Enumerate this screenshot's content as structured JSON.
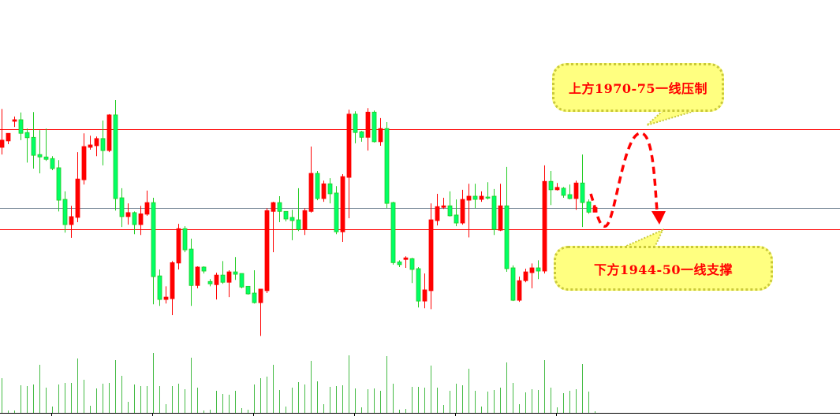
{
  "annotations": {
    "resistance_text": "上方1970-75一线压制",
    "support_text": "下方1944-50一线支撑"
  },
  "colors": {
    "up_candle": "#ff0000",
    "down_candle": "#00ff66",
    "down_outline": "#22cc22",
    "resistance_line": "#ff0000",
    "support_line": "#ff0000",
    "mid_line": "#7a8a99",
    "volume": "#44bb44",
    "callout_fill": "#ffff80",
    "callout_border": "#c9c93a",
    "forecast_arrow": "#ff0000"
  },
  "chart_data": {
    "type": "candlestick",
    "title": "",
    "xlabel": "",
    "ylabel": "",
    "ylim": [
      1900.4,
      2004.3
    ],
    "grid": false,
    "legend": "none",
    "horizontal_lines": [
      {
        "role": "resistance",
        "value": 1972.0
      },
      {
        "role": "mid",
        "value": 1952.3
      },
      {
        "role": "support",
        "value": 1947.0
      }
    ],
    "ohlc": [
      [
        1967.5,
        1977.1,
        1965.7,
        1969.3
      ],
      [
        1969.1,
        1971.0,
        1968.3,
        1971.0
      ],
      [
        1974.0,
        1975.2,
        1972.6,
        1974.4
      ],
      [
        1974.4,
        1976.2,
        1969.3,
        1971.0
      ],
      [
        1971.2,
        1972.2,
        1963.7,
        1969.9
      ],
      [
        1970.0,
        1976.3,
        1962.2,
        1965.5
      ],
      [
        1965.7,
        1971.8,
        1961.0,
        1965.1
      ],
      [
        1965.1,
        1972.2,
        1964.1,
        1964.5
      ],
      [
        1964.7,
        1965.3,
        1961.8,
        1962.2
      ],
      [
        1962.4,
        1964.3,
        1951.5,
        1954.3
      ],
      [
        1954.5,
        1956.5,
        1946.2,
        1948.2
      ],
      [
        1948.2,
        1952.9,
        1944.9,
        1950.2
      ],
      [
        1950.0,
        1966.3,
        1948.8,
        1959.6
      ],
      [
        1959.4,
        1971.0,
        1958.2,
        1967.7
      ],
      [
        1967.5,
        1970.4,
        1966.9,
        1968.1
      ],
      [
        1967.9,
        1970.2,
        1965.3,
        1969.7
      ],
      [
        1969.7,
        1974.2,
        1963.0,
        1966.7
      ],
      [
        1966.7,
        1975.8,
        1966.3,
        1975.6
      ],
      [
        1975.6,
        1979.3,
        1951.7,
        1954.7
      ],
      [
        1954.9,
        1957.3,
        1947.6,
        1950.2
      ],
      [
        1950.2,
        1953.5,
        1948.2,
        1951.2
      ],
      [
        1951.2,
        1951.5,
        1945.8,
        1948.2
      ],
      [
        1948.2,
        1952.9,
        1945.6,
        1950.9
      ],
      [
        1950.8,
        1956.7,
        1950.4,
        1953.7
      ],
      [
        1953.7,
        1954.9,
        1928.3,
        1935.2
      ],
      [
        1935.4,
        1937.0,
        1927.9,
        1929.5
      ],
      [
        1929.5,
        1932.8,
        1928.5,
        1930.1
      ],
      [
        1929.7,
        1939.1,
        1925.6,
        1938.7
      ],
      [
        1938.6,
        1948.4,
        1937.0,
        1947.2
      ],
      [
        1947.2,
        1947.8,
        1941.3,
        1941.9
      ],
      [
        1942.1,
        1944.7,
        1927.9,
        1933.0
      ],
      [
        1933.0,
        1937.8,
        1932.3,
        1937.6
      ],
      [
        1937.6,
        1937.8,
        1936.0,
        1936.6
      ],
      [
        1934.0,
        1934.6,
        1932.8,
        1933.4
      ],
      [
        1933.2,
        1936.2,
        1929.5,
        1935.6
      ],
      [
        1935.6,
        1939.1,
        1933.4,
        1933.8
      ],
      [
        1933.8,
        1936.8,
        1930.1,
        1936.4
      ],
      [
        1936.4,
        1940.1,
        1934.4,
        1935.8
      ],
      [
        1936.0,
        1936.0,
        1932.3,
        1932.6
      ],
      [
        1932.8,
        1932.8,
        1930.7,
        1930.9
      ],
      [
        1931.1,
        1936.8,
        1928.5,
        1928.7
      ],
      [
        1928.7,
        1932.1,
        1920.4,
        1932.1
      ],
      [
        1931.7,
        1952.3,
        1931.1,
        1951.7
      ],
      [
        1951.5,
        1953.9,
        1941.3,
        1953.7
      ],
      [
        1953.7,
        1955.3,
        1948.8,
        1951.5
      ],
      [
        1951.5,
        1951.5,
        1949.0,
        1949.6
      ],
      [
        1950.0,
        1951.9,
        1944.3,
        1949.2
      ],
      [
        1949.4,
        1957.3,
        1946.6,
        1947.0
      ],
      [
        1947.0,
        1952.3,
        1945.6,
        1951.7
      ],
      [
        1951.5,
        1967.7,
        1951.2,
        1961.0
      ],
      [
        1961.0,
        1961.6,
        1954.3,
        1954.7
      ],
      [
        1954.7,
        1959.2,
        1953.9,
        1958.4
      ],
      [
        1958.4,
        1959.8,
        1953.5,
        1955.9
      ],
      [
        1956.1,
        1957.8,
        1945.8,
        1946.4
      ],
      [
        1946.4,
        1960.8,
        1943.9,
        1960.2
      ],
      [
        1960.0,
        1976.9,
        1949.8,
        1975.8
      ],
      [
        1975.8,
        1976.5,
        1968.5,
        1971.2
      ],
      [
        1971.4,
        1971.6,
        1968.9,
        1970.0
      ],
      [
        1970.0,
        1977.3,
        1966.7,
        1976.3
      ],
      [
        1976.3,
        1976.7,
        1968.7,
        1968.9
      ],
      [
        1968.9,
        1974.8,
        1967.9,
        1972.2
      ],
      [
        1972.2,
        1973.8,
        1952.3,
        1953.5
      ],
      [
        1953.7,
        1953.9,
        1938.2,
        1938.7
      ],
      [
        1938.9,
        1939.3,
        1937.6,
        1938.2
      ],
      [
        1939.5,
        1940.3,
        1937.4,
        1939.9
      ],
      [
        1939.7,
        1939.9,
        1933.6,
        1937.0
      ],
      [
        1937.2,
        1937.6,
        1927.5,
        1929.1
      ],
      [
        1929.1,
        1936.0,
        1927.3,
        1931.9
      ],
      [
        1931.7,
        1953.5,
        1927.1,
        1949.4
      ],
      [
        1949.2,
        1955.9,
        1948.0,
        1952.7
      ],
      [
        1952.5,
        1954.9,
        1952.1,
        1952.9
      ],
      [
        1952.9,
        1956.5,
        1950.2,
        1950.4
      ],
      [
        1950.6,
        1954.5,
        1947.8,
        1948.6
      ],
      [
        1948.6,
        1956.9,
        1948.2,
        1954.5
      ],
      [
        1954.3,
        1958.4,
        1945.0,
        1955.3
      ],
      [
        1955.3,
        1958.4,
        1952.3,
        1954.5
      ],
      [
        1954.5,
        1956.5,
        1953.9,
        1955.3
      ],
      [
        1955.1,
        1958.8,
        1954.5,
        1954.9
      ],
      [
        1955.3,
        1957.1,
        1945.6,
        1947.0
      ],
      [
        1946.8,
        1958.4,
        1946.6,
        1952.9
      ],
      [
        1952.9,
        1962.6,
        1936.4,
        1937.2
      ],
      [
        1937.4,
        1938.0,
        1929.1,
        1929.3
      ],
      [
        1929.3,
        1935.2,
        1928.9,
        1934.2
      ],
      [
        1934.2,
        1937.2,
        1933.8,
        1936.4
      ],
      [
        1936.2,
        1938.5,
        1932.3,
        1937.4
      ],
      [
        1937.4,
        1939.3,
        1934.6,
        1936.6
      ],
      [
        1936.6,
        1963.0,
        1936.0,
        1959.0
      ],
      [
        1959.0,
        1961.6,
        1953.1,
        1956.9
      ],
      [
        1956.9,
        1958.6,
        1956.7,
        1957.5
      ],
      [
        1957.3,
        1957.6,
        1954.9,
        1955.5
      ],
      [
        1955.7,
        1958.2,
        1954.5,
        1954.7
      ],
      [
        1954.7,
        1959.2,
        1951.9,
        1958.6
      ],
      [
        1958.6,
        1965.7,
        1947.6,
        1953.7
      ],
      [
        1953.9,
        1954.5,
        1950.9,
        1951.3
      ],
      [
        1951.3,
        1952.5,
        1951.3,
        1952.5
      ]
    ],
    "volume": [
      44,
      3,
      3,
      35,
      34,
      36,
      61,
      32,
      8,
      36,
      38,
      38,
      69,
      42,
      9,
      31,
      37,
      38,
      67,
      47,
      14,
      36,
      34,
      34,
      76,
      34,
      11,
      34,
      37,
      30,
      70,
      32,
      3,
      4,
      28,
      24,
      23,
      28,
      6,
      4,
      36,
      44,
      46,
      61,
      29,
      8,
      32,
      39,
      36,
      66,
      40,
      11,
      33,
      34,
      35,
      73,
      31,
      7,
      30,
      31,
      28,
      72,
      37,
      4,
      5,
      33,
      33,
      32,
      60,
      32,
      10,
      28,
      37,
      35,
      56,
      28,
      8,
      27,
      29,
      32,
      64,
      38,
      11,
      26,
      30,
      29,
      67,
      32,
      7,
      25,
      28,
      30,
      62,
      27,
      2
    ],
    "forecast_path": "dashed arrow: dip toward support, rally to resistance, then decline to support"
  }
}
